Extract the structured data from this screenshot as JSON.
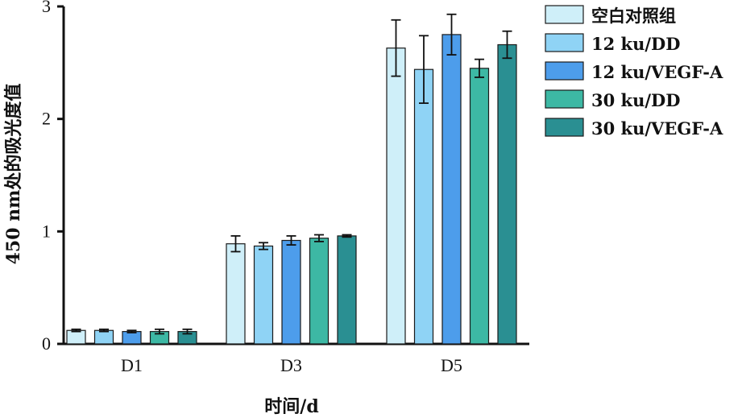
{
  "chart_data": {
    "type": "bar",
    "xlabel": "时间/d",
    "ylabel": "450 nm处的吸光度值",
    "categories": [
      "D1",
      "D3",
      "D5"
    ],
    "ylim": [
      0,
      3
    ],
    "yticks": [
      0,
      1,
      2,
      3
    ],
    "grid": false,
    "legend_position": "top-right",
    "error_bars": true,
    "series": [
      {
        "name": "空白对照组",
        "color": "#CFEFF9",
        "values": [
          0.12,
          0.89,
          2.63
        ],
        "errors": [
          0.01,
          0.07,
          0.25
        ]
      },
      {
        "name": "12 ku/DD",
        "color": "#8FD3F5",
        "values": [
          0.12,
          0.87,
          2.44
        ],
        "errors": [
          0.01,
          0.03,
          0.3
        ]
      },
      {
        "name": "12 ku/VEGF-A",
        "color": "#4D9DEB",
        "values": [
          0.11,
          0.92,
          2.75
        ],
        "errors": [
          0.01,
          0.04,
          0.18
        ]
      },
      {
        "name": "30 ku/DD",
        "color": "#3DB8A4",
        "values": [
          0.11,
          0.94,
          2.45
        ],
        "errors": [
          0.02,
          0.03,
          0.08
        ]
      },
      {
        "name": "30 ku/VEGF-A",
        "color": "#2A8F92",
        "values": [
          0.11,
          0.96,
          2.66
        ],
        "errors": [
          0.02,
          0.01,
          0.12
        ]
      }
    ]
  }
}
